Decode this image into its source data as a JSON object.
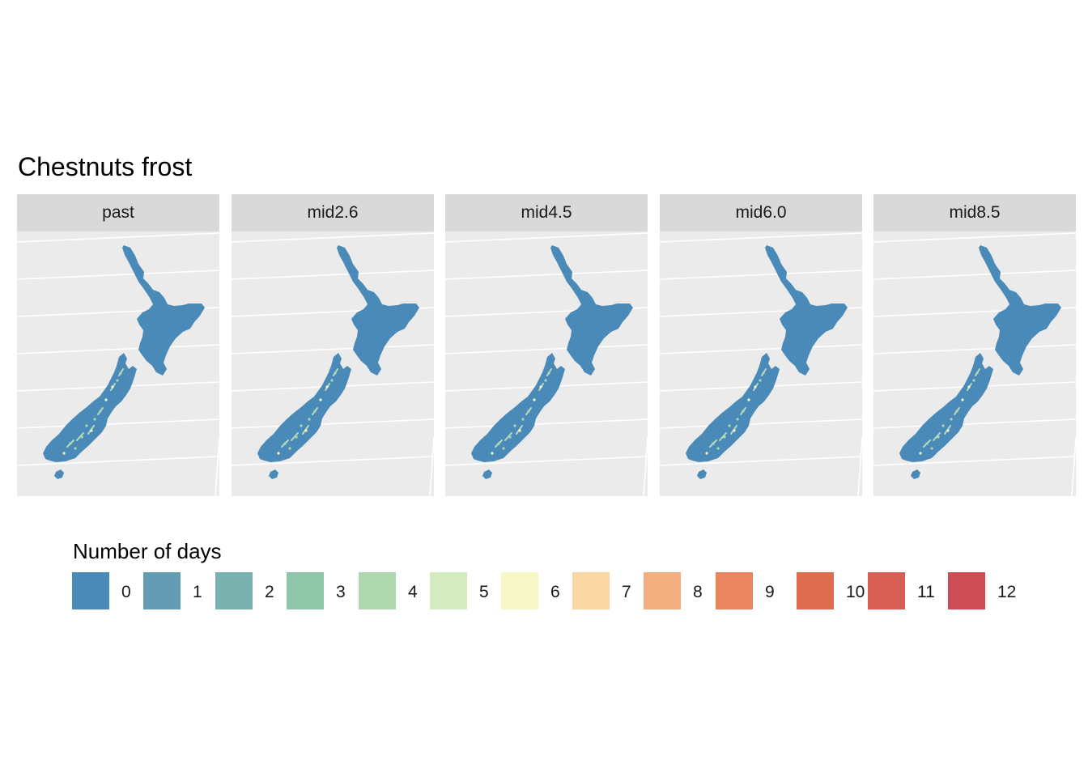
{
  "title": "Chestnuts frost",
  "panels": [
    {
      "label": "past"
    },
    {
      "label": "mid2.6"
    },
    {
      "label": "mid4.5"
    },
    {
      "label": "mid6.0"
    },
    {
      "label": "mid8.5"
    }
  ],
  "legend": {
    "title": "Number of days",
    "items": [
      {
        "label": "0",
        "color": "#4a8ab8"
      },
      {
        "label": "1",
        "color": "#649db3"
      },
      {
        "label": "2",
        "color": "#79b1ae"
      },
      {
        "label": "3",
        "color": "#8fc5a9"
      },
      {
        "label": "4",
        "color": "#b0d8b0"
      },
      {
        "label": "5",
        "color": "#d3ebbf"
      },
      {
        "label": "6",
        "color": "#f7f8c8"
      },
      {
        "label": "7",
        "color": "#f9d7a3"
      },
      {
        "label": "8",
        "color": "#f3ae7f"
      },
      {
        "label": "9",
        "color": "#ea855f"
      },
      {
        "label": "10",
        "color": "#e06c50"
      },
      {
        "label": "11",
        "color": "#d75e53"
      },
      {
        "label": "12",
        "color": "#cc4e54"
      }
    ]
  },
  "colors": {
    "land": "#4a8ab8",
    "panel_background": "#ebebeb",
    "strip_background": "#d9d9d9",
    "gridline": "#ffffff"
  }
}
